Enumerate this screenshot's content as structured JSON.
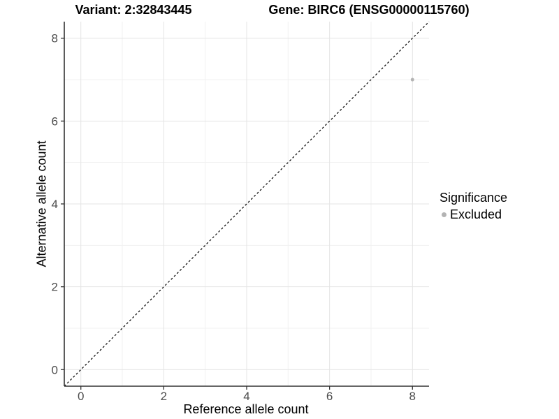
{
  "chart_data": {
    "type": "scatter",
    "variant_title": "Variant: 2:32843445",
    "gene_title": "Gene: BIRC6 (ENSG00000115760)",
    "xlabel": "Reference allele count",
    "ylabel": "Alternative allele count",
    "xlim": [
      -0.4,
      8.4
    ],
    "ylim": [
      -0.4,
      8.4
    ],
    "x_ticks": [
      0,
      2,
      4,
      6,
      8
    ],
    "y_ticks": [
      0,
      2,
      4,
      6,
      8
    ],
    "x_minor": [
      1,
      3,
      5,
      7
    ],
    "y_minor": [
      1,
      3,
      5,
      7
    ],
    "grid": true,
    "identity_line": {
      "style": "dashed",
      "color": "#000000",
      "dash": "3 3"
    },
    "points": [
      {
        "x": 8,
        "y": 7,
        "series": "Excluded"
      }
    ],
    "legend": {
      "title": "Significance",
      "position": "right",
      "entries": [
        {
          "label": "Excluded",
          "color": "#b3b3b3"
        }
      ]
    },
    "colors": {
      "point": "#b3b3b3",
      "grid_major": "#e4e4e4",
      "grid_minor": "#f1f1f1",
      "axis": "#333333",
      "tick_text": "#4d4d4d",
      "title_text": "#000000",
      "background": "#ffffff"
    }
  }
}
